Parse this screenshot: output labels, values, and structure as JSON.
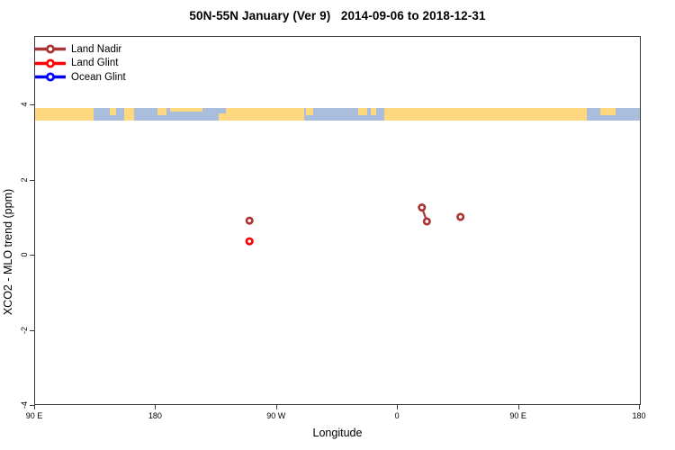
{
  "chart_data": {
    "type": "scatter",
    "title": "50N-55N January (Ver 9)   2014-09-06 to 2018-12-31",
    "xlabel": "Longitude",
    "ylabel": "XCO2 - MLO trend (ppm)",
    "grid": false,
    "x_axis": {
      "wrapped": true,
      "start_label": "90 E",
      "span_deg": 450,
      "tick_labels": [
        "90 E",
        "180",
        "90 W",
        "0",
        "90 E",
        "180"
      ],
      "tick_positions_deg": [
        0,
        90,
        180,
        270,
        360,
        450
      ]
    },
    "y_axis": {
      "range": [
        -4,
        4
      ],
      "tick_values": [
        -4,
        -2,
        0,
        2,
        4
      ],
      "tick_labels": [
        "-4",
        "-2",
        "0",
        "2",
        "4"
      ]
    },
    "legend": {
      "position": "top-left",
      "items": [
        {
          "label": "Land Nadir",
          "color": "#A93434"
        },
        {
          "label": "Land Glint",
          "color": "#FF0000"
        },
        {
          "label": "Ocean Glint",
          "color": "#0000FF"
        }
      ]
    },
    "series": [
      {
        "name": "Land Nadir",
        "color": "#A93434",
        "marker": "open-circle",
        "points": [
          {
            "longitude": "110 W",
            "axis_deg": 159.5,
            "value": 0.93
          },
          {
            "longitude": "18 E",
            "axis_deg": 287.8,
            "value": 1.28
          },
          {
            "longitude": "21 E",
            "axis_deg": 291.5,
            "value": 0.91
          },
          {
            "longitude": "47 E",
            "axis_deg": 316.5,
            "value": 1.03
          }
        ],
        "connected_point_indices": [
          [
            1,
            2
          ]
        ]
      },
      {
        "name": "Land Glint",
        "color": "#FF0000",
        "marker": "open-circle",
        "points": [
          {
            "longitude": "110 W",
            "axis_deg": 159.5,
            "value": 0.38
          }
        ],
        "connected_point_indices": []
      },
      {
        "name": "Ocean Glint",
        "color": "#0000FF",
        "marker": "open-circle",
        "points": [],
        "connected_point_indices": []
      }
    ],
    "map_band": {
      "description": "land-ocean strip for 50N-55N latitude zone",
      "value_top": 3.9,
      "value_bottom": 3.62,
      "ocean_color": "#A9BEDC",
      "land_color": "#FDD87E",
      "land_patches": [
        {
          "from": 0.0,
          "to": 0.097,
          "cover": "full"
        },
        {
          "from": 0.123,
          "to": 0.134,
          "cover": "top"
        },
        {
          "from": 0.148,
          "to": 0.163,
          "cover": "full"
        },
        {
          "from": 0.203,
          "to": 0.218,
          "cover": "top"
        },
        {
          "from": 0.223,
          "to": 0.277,
          "cover": "thin-top"
        },
        {
          "from": 0.304,
          "to": 0.316,
          "cover": "bottom"
        },
        {
          "from": 0.316,
          "to": 0.445,
          "cover": "full"
        },
        {
          "from": 0.448,
          "to": 0.46,
          "cover": "top"
        },
        {
          "from": 0.534,
          "to": 0.549,
          "cover": "top"
        },
        {
          "from": 0.555,
          "to": 0.564,
          "cover": "top"
        },
        {
          "from": 0.577,
          "to": 0.912,
          "cover": "full"
        },
        {
          "from": 0.935,
          "to": 0.96,
          "cover": "top"
        }
      ]
    }
  }
}
